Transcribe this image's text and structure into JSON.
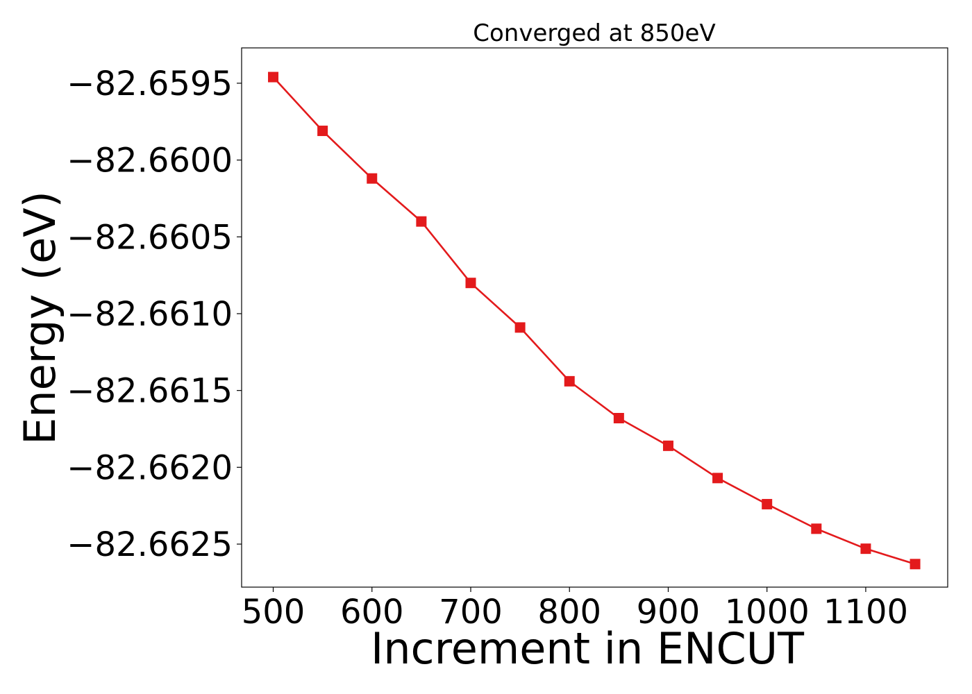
{
  "chart_data": {
    "type": "line",
    "title": "Converged at 850eV",
    "xlabel": "Increment in ENCUT",
    "ylabel": "Energy (eV)",
    "xlim": [
      468,
      1183
    ],
    "ylim": [
      -82.66278,
      -82.65927
    ],
    "x_ticks": [
      500,
      600,
      700,
      800,
      900,
      1000,
      1100
    ],
    "y_ticks": [
      -82.6595,
      -82.66,
      -82.6605,
      -82.661,
      -82.6615,
      -82.662,
      -82.6625
    ],
    "y_tick_labels": [
      "−82.6595",
      "−82.6600",
      "−82.6605",
      "−82.6610",
      "−82.6615",
      "−82.6620",
      "−82.6625"
    ],
    "grid": false,
    "series": [
      {
        "color": "#e31a1c",
        "marker": "square",
        "x": [
          500,
          550,
          600,
          650,
          700,
          750,
          800,
          850,
          900,
          950,
          1000,
          1050,
          1100,
          1150
        ],
        "y": [
          -82.65946,
          -82.65981,
          -82.66012,
          -82.6604,
          -82.6608,
          -82.66109,
          -82.66144,
          -82.66168,
          -82.66186,
          -82.66207,
          -82.66224,
          -82.6624,
          -82.66253,
          -82.66263
        ]
      }
    ]
  }
}
